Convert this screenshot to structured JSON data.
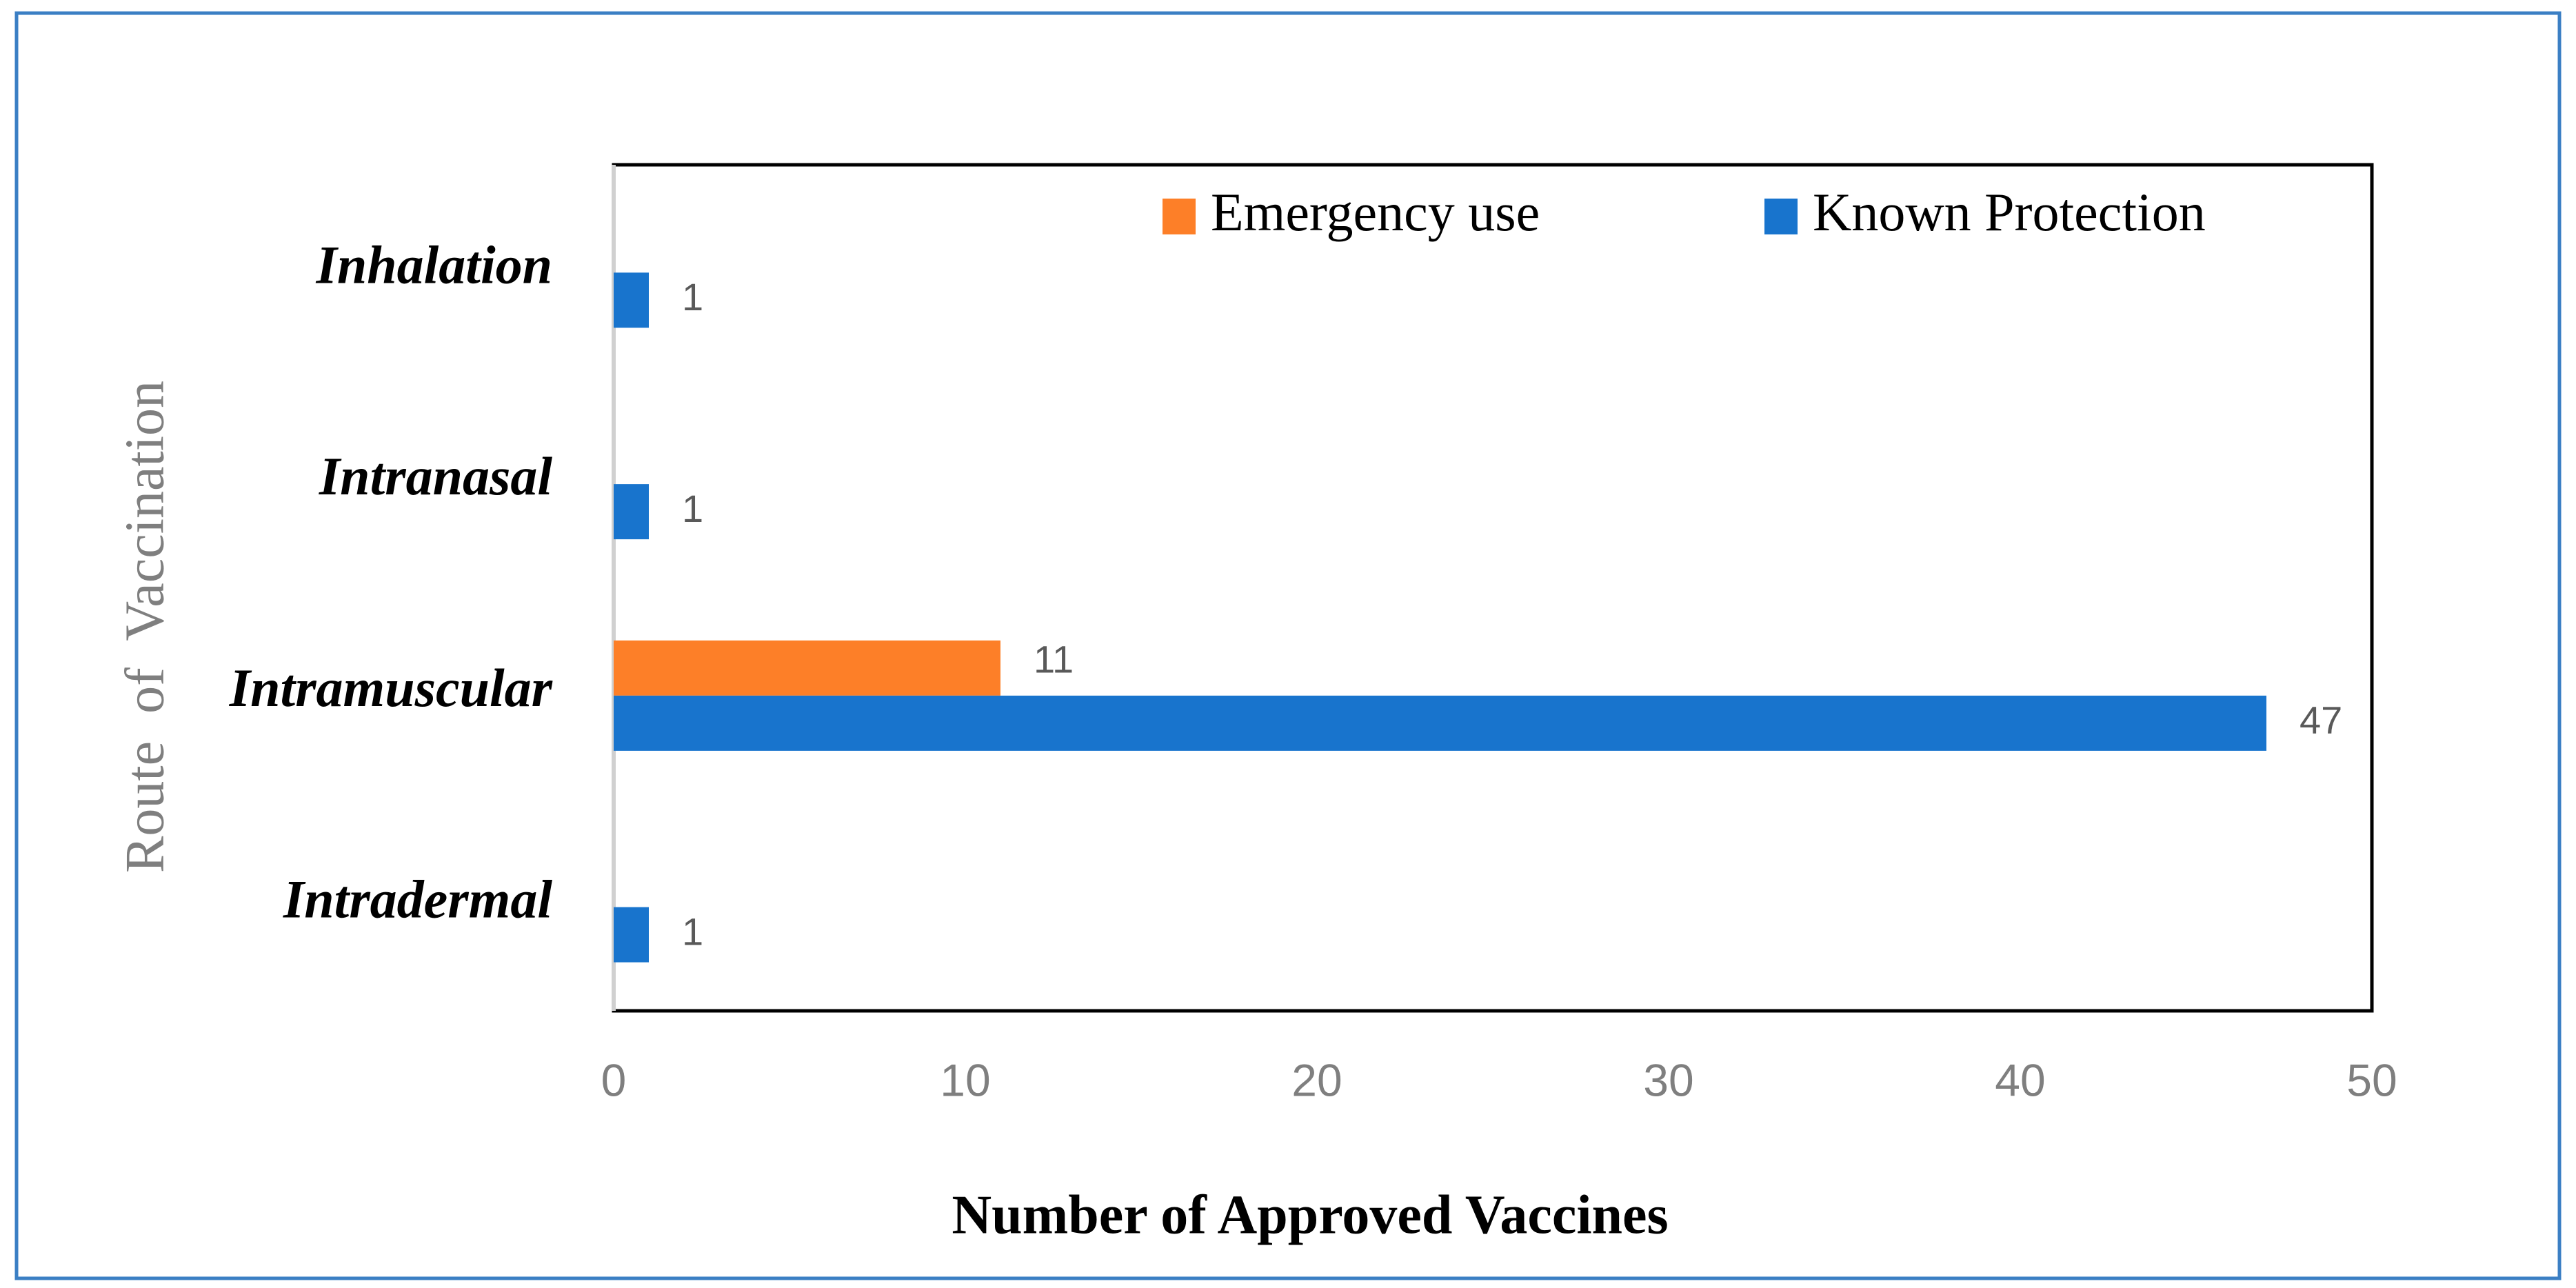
{
  "chart_data": {
    "type": "hbar",
    "x_label": "Number of Approved Vaccines",
    "y_label": "Route  of  Vaccination",
    "categories": [
      "Inhalation",
      "Intranasal",
      "Intramuscular",
      "Intradermal"
    ],
    "series": [
      {
        "name": "Emergency use",
        "color": "#fd7f28",
        "values": [
          null,
          null,
          11,
          null
        ]
      },
      {
        "name": "Known Protection",
        "color": "#1874cd",
        "values": [
          1,
          1,
          47,
          1
        ]
      }
    ],
    "xlim": [
      0,
      50
    ],
    "xticks": [
      0,
      10,
      20,
      30,
      40,
      50
    ],
    "grid": false,
    "legend": "top-right"
  }
}
